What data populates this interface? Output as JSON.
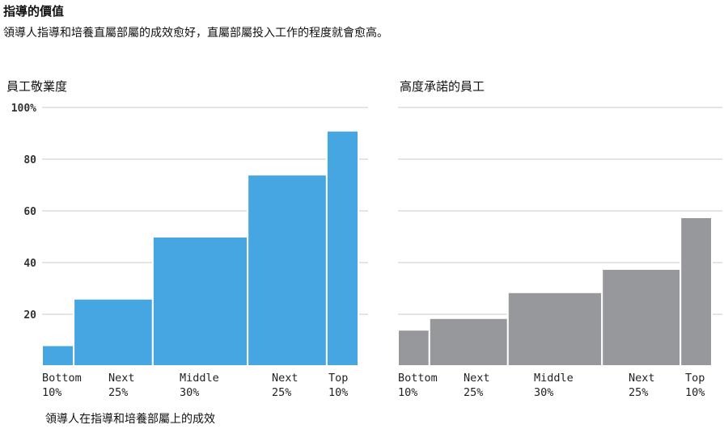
{
  "header": {
    "title": "指導的價值",
    "subtitle": "領導人指導和培養直屬部屬的成效愈好，直屬部屬投入工作的程度就會愈高。"
  },
  "chart_data": [
    {
      "type": "bar",
      "title": "員工敬業度",
      "categories": [
        "Bottom 10%",
        "Next 25%",
        "Middle 30%",
        "Next 25%",
        "Top 10%"
      ],
      "category_widths": [
        10,
        25,
        30,
        25,
        10
      ],
      "values": [
        8,
        26,
        50,
        74,
        91
      ],
      "ylim": [
        0,
        100
      ],
      "yticks": [
        "100%",
        "80",
        "60",
        "40",
        "20"
      ],
      "xlabel": "領導人在指導和培養部屬上的成效",
      "ylabel": "",
      "color": "#45a6e2",
      "grid": true
    },
    {
      "type": "bar",
      "title": "高度承諾的員工",
      "categories": [
        "Bottom 10%",
        "Next 25%",
        "Middle 30%",
        "Next 25%",
        "Top 10%"
      ],
      "category_widths": [
        10,
        25,
        30,
        25,
        10
      ],
      "values": [
        14,
        18.5,
        28.5,
        37.5,
        57.5
      ],
      "ylim": [
        0,
        100
      ],
      "xlabel": "",
      "ylabel": "",
      "color": "#97989c",
      "grid": true
    }
  ]
}
